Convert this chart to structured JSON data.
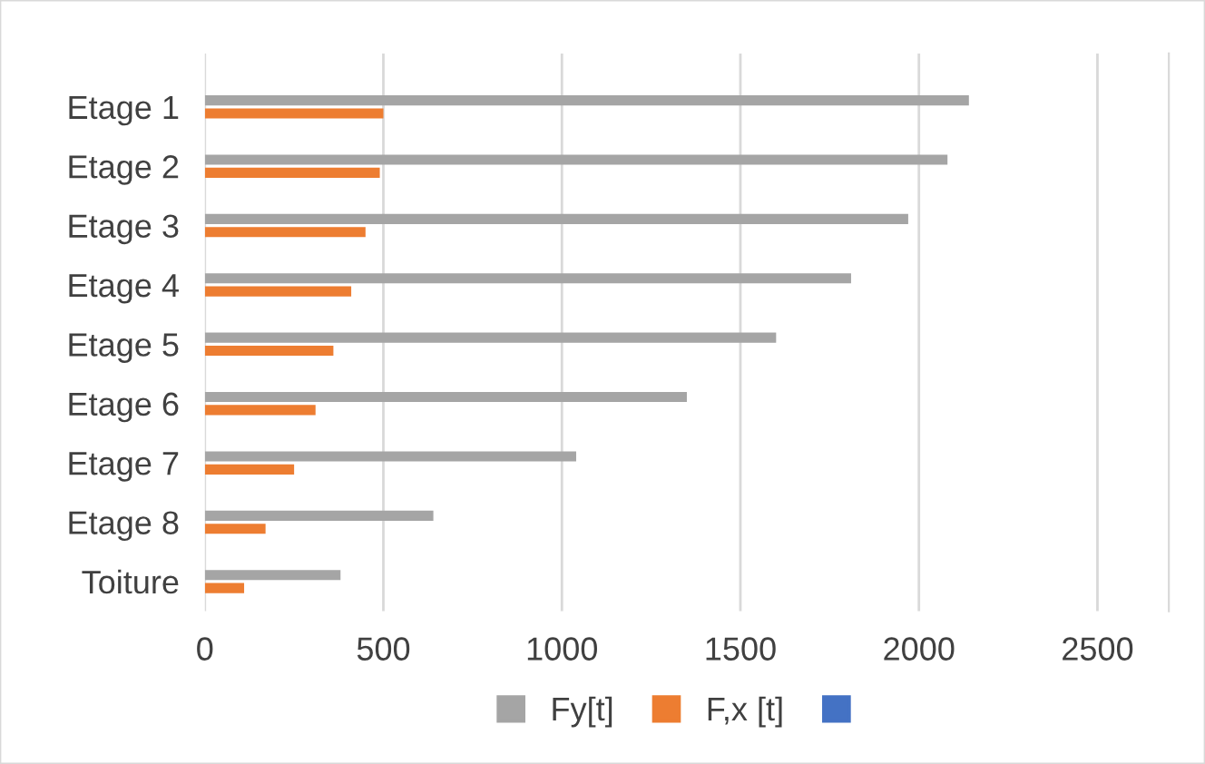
{
  "chart_data": {
    "type": "bar",
    "orientation": "horizontal",
    "categories": [
      "Etage 1",
      "Etage 2",
      "Etage 3",
      "Etage 4",
      "Etage 5",
      "Etage 6",
      "Etage 7",
      "Etage 8",
      "Toiture"
    ],
    "series": [
      {
        "name": "Fy[t]",
        "color": "#a5a5a5",
        "values": [
          2140,
          2080,
          1970,
          1810,
          1600,
          1350,
          1040,
          640,
          380
        ]
      },
      {
        "name": "F,x [t]",
        "color": "#ed7d31",
        "values": [
          500,
          490,
          450,
          410,
          360,
          310,
          250,
          170,
          110
        ]
      },
      {
        "color": "#4472c4",
        "values": [
          null,
          null,
          null,
          null,
          null,
          null,
          null,
          null,
          null
        ]
      }
    ],
    "xlim": [
      0,
      2700
    ],
    "xticks": [
      0,
      500,
      1000,
      1500,
      2000,
      2500
    ],
    "grid": "x",
    "legend": "bottom"
  }
}
